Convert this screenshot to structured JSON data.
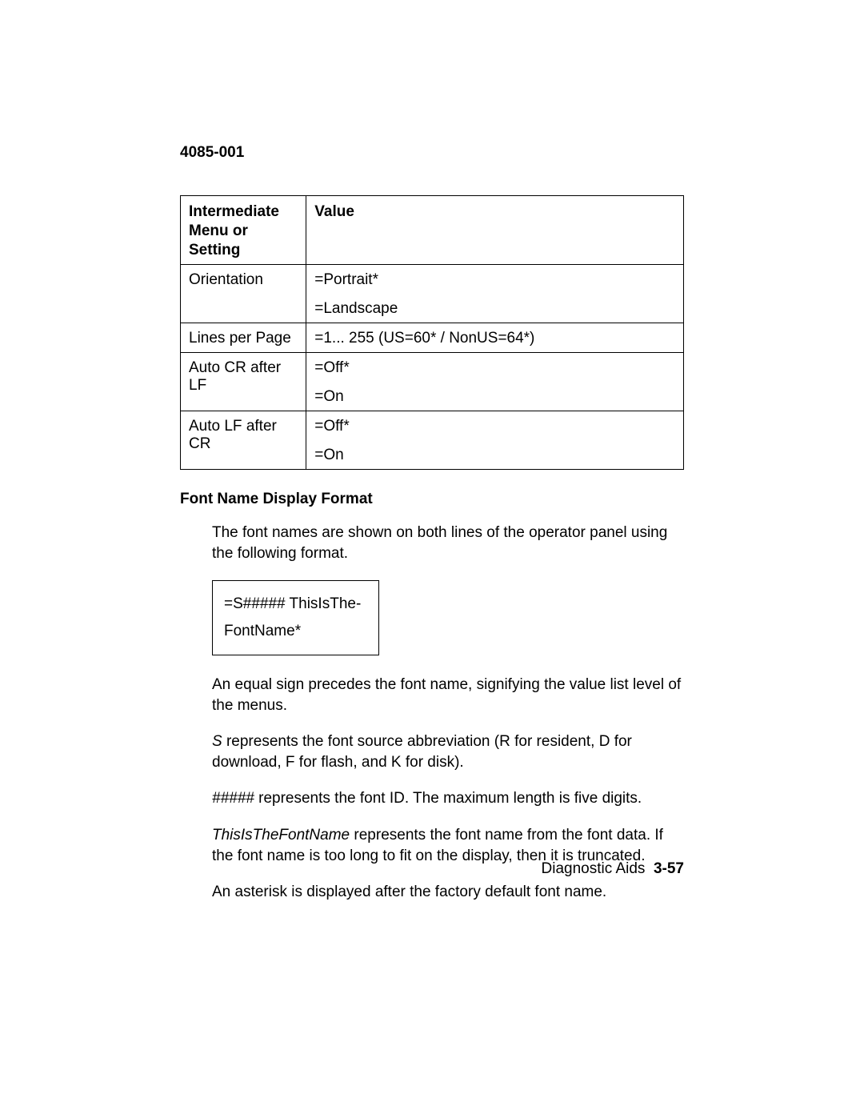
{
  "header": {
    "doc_id": "4085-001"
  },
  "table": {
    "columns": [
      "Intermediate Menu or Setting",
      "Value"
    ],
    "rows": [
      {
        "setting": "Orientation",
        "values": [
          "=Portrait*",
          "=Landscape"
        ]
      },
      {
        "setting": "Lines per Page",
        "values": [
          "=1... 255 (US=60* / NonUS=64*)"
        ]
      },
      {
        "setting": "Auto CR after LF",
        "values": [
          "=Off*",
          "=On"
        ]
      },
      {
        "setting": "Auto LF after CR",
        "values": [
          "=Off*",
          "=On"
        ]
      }
    ]
  },
  "section": {
    "title": "Font Name Display Format",
    "intro": "The font names are shown on both lines of the operator panel using the following format.",
    "format_box_line1": "=S##### ThisIsThe-",
    "format_box_line2": "FontName*",
    "p_equal": "An equal sign precedes the font name, signifying the value list level of the menus.",
    "p_s_italic": "S",
    "p_s_rest": " represents the font source abbreviation (R for resident, D for download, F for flash, and K for disk).",
    "p_hash_italic": "#####",
    "p_hash_rest": " represents the font ID. The maximum length is five digits.",
    "p_name_italic": "ThisIsTheFontName",
    "p_name_rest": " represents the font name from the font data. If the font name is too long to fit on the display, then it is truncated.",
    "p_asterisk": "An asterisk is displayed after the factory default font name."
  },
  "footer": {
    "label": "Diagnostic Aids",
    "page": "3-57"
  }
}
